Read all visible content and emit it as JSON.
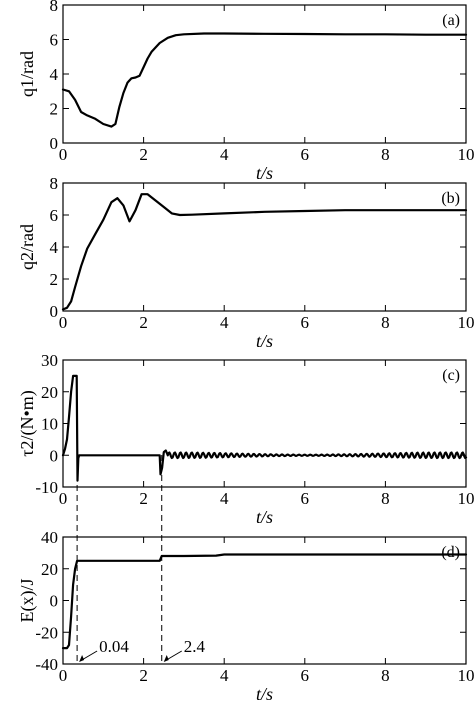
{
  "chart_data": [
    {
      "panel": "(a)",
      "type": "line",
      "xlabel": "t/s",
      "ylabel": "q1/rad",
      "xlim": [
        0,
        10
      ],
      "ylim": [
        0,
        8
      ],
      "xticks": [
        0,
        2,
        4,
        6,
        8,
        10
      ],
      "yticks": [
        0,
        2,
        4,
        6,
        8
      ],
      "series": [
        {
          "x": [
            0,
            0.15,
            0.3,
            0.45,
            0.6,
            0.8,
            1.0,
            1.2,
            1.3,
            1.4,
            1.5,
            1.6,
            1.7,
            1.8,
            1.9,
            2.0,
            2.1,
            2.2,
            2.4,
            2.6,
            2.8,
            3.0,
            3.5,
            4.0,
            5.0,
            6.0,
            7.0,
            8.0,
            9.0,
            10.0
          ],
          "y": [
            3.1,
            3.0,
            2.5,
            1.8,
            1.6,
            1.4,
            1.1,
            0.95,
            1.1,
            2.1,
            2.9,
            3.5,
            3.75,
            3.8,
            3.9,
            4.4,
            4.9,
            5.3,
            5.8,
            6.1,
            6.25,
            6.3,
            6.35,
            6.35,
            6.33,
            6.32,
            6.3,
            6.3,
            6.28,
            6.28
          ]
        }
      ]
    },
    {
      "panel": "(b)",
      "type": "line",
      "xlabel": "t/s",
      "ylabel": "q2/rad",
      "xlim": [
        0,
        10
      ],
      "ylim": [
        0,
        8
      ],
      "xticks": [
        0,
        2,
        4,
        6,
        8,
        10
      ],
      "yticks": [
        0,
        2,
        4,
        6,
        8
      ],
      "series": [
        {
          "x": [
            0,
            0.1,
            0.2,
            0.3,
            0.45,
            0.6,
            0.8,
            1.0,
            1.2,
            1.35,
            1.5,
            1.65,
            1.8,
            1.95,
            2.1,
            2.3,
            2.5,
            2.7,
            2.9,
            3.2,
            4.0,
            5.0,
            6.0,
            7.0,
            8.0,
            9.0,
            10.0
          ],
          "y": [
            0.1,
            0.2,
            0.6,
            1.5,
            2.8,
            3.9,
            4.8,
            5.7,
            6.8,
            7.05,
            6.6,
            5.6,
            6.3,
            7.3,
            7.3,
            6.9,
            6.5,
            6.1,
            6.0,
            6.02,
            6.1,
            6.2,
            6.25,
            6.3,
            6.3,
            6.3,
            6.3
          ]
        }
      ]
    },
    {
      "panel": "(c)",
      "type": "line",
      "xlabel": "t/s",
      "ylabel": "τ2/(N•m)",
      "xlim": [
        0,
        10
      ],
      "ylim": [
        -10,
        30
      ],
      "xticks": [
        0,
        2,
        4,
        6,
        8,
        10
      ],
      "yticks": [
        -10,
        0,
        10,
        20,
        30
      ],
      "series": [
        {
          "x": [
            0,
            0.05,
            0.1,
            0.15,
            0.2,
            0.25,
            0.3,
            0.34,
            0.36,
            0.38,
            0.4,
            2.38,
            2.4,
            2.42,
            2.46,
            2.5,
            2.55,
            2.6
          ],
          "y": [
            0,
            2,
            5,
            12,
            20,
            25,
            25,
            25,
            -8,
            -1,
            0,
            0,
            0,
            -6,
            -4,
            1,
            1.5,
            0
          ],
          "oscillation": {
            "from": 2.6,
            "to": 10,
            "period": 0.14,
            "amplitude": 0.9
          }
        }
      ]
    },
    {
      "panel": "(d)",
      "type": "line",
      "xlabel": "t/s",
      "ylabel": "E(x)/J",
      "xlim": [
        0,
        10
      ],
      "ylim": [
        -40,
        40
      ],
      "xticks": [
        0,
        2,
        4,
        6,
        8,
        10
      ],
      "yticks": [
        -40,
        -20,
        0,
        20,
        40
      ],
      "series": [
        {
          "x": [
            0,
            0.1,
            0.15,
            0.2,
            0.25,
            0.3,
            0.35,
            2.4,
            2.45,
            3.0,
            3.8,
            4.0,
            5.0,
            6.0,
            8.0,
            10.0
          ],
          "y": [
            -30,
            -30,
            -28,
            -10,
            10,
            20,
            25,
            25,
            28,
            28,
            28.3,
            29,
            29,
            29,
            29,
            29
          ]
        }
      ],
      "annotations": [
        {
          "text": "0.04",
          "x": 0.35
        },
        {
          "text": "2.4",
          "x": 2.45
        }
      ]
    }
  ]
}
